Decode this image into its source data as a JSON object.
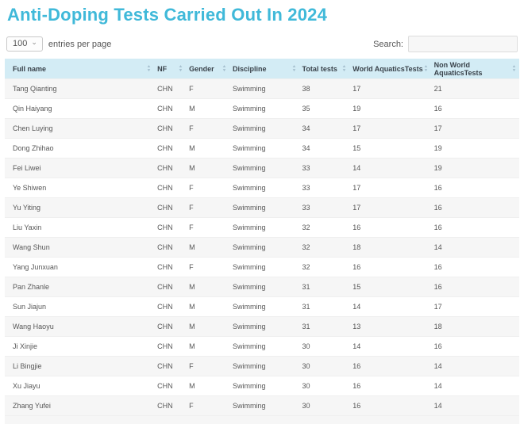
{
  "page": {
    "title": "Anti-Doping Tests Carried Out In 2024"
  },
  "controls": {
    "entries_selected": "100",
    "entries_label": "entries per page",
    "search_label": "Search:",
    "search_value": ""
  },
  "icons": {
    "select_chevron": "⌄",
    "sort_up": "▲",
    "sort_down": "▼"
  },
  "colors": {
    "title": "#40b9d9",
    "header_bg": "#d3ecf5",
    "stripe_bg": "#f6f6f6",
    "body_text": "#575757"
  },
  "table": {
    "columns": [
      {
        "label": "Full name"
      },
      {
        "label": "NF"
      },
      {
        "label": "Gender"
      },
      {
        "label": "Discipline"
      },
      {
        "label": "Total tests"
      },
      {
        "label": "World AquaticsTests"
      },
      {
        "label": "Non World AquaticsTests"
      }
    ],
    "rows": [
      {
        "full_name": "Tang Qianting",
        "nf": "CHN",
        "gender": "F",
        "discipline": "Swimming",
        "total_tests": "38",
        "world_aquatics_tests": "17",
        "non_world_aquatics_tests": "21"
      },
      {
        "full_name": "Qin Haiyang",
        "nf": "CHN",
        "gender": "M",
        "discipline": "Swimming",
        "total_tests": "35",
        "world_aquatics_tests": "19",
        "non_world_aquatics_tests": "16"
      },
      {
        "full_name": "Chen Luying",
        "nf": "CHN",
        "gender": "F",
        "discipline": "Swimming",
        "total_tests": "34",
        "world_aquatics_tests": "17",
        "non_world_aquatics_tests": "17"
      },
      {
        "full_name": "Dong Zhihao",
        "nf": "CHN",
        "gender": "M",
        "discipline": "Swimming",
        "total_tests": "34",
        "world_aquatics_tests": "15",
        "non_world_aquatics_tests": "19"
      },
      {
        "full_name": "Fei Liwei",
        "nf": "CHN",
        "gender": "M",
        "discipline": "Swimming",
        "total_tests": "33",
        "world_aquatics_tests": "14",
        "non_world_aquatics_tests": "19"
      },
      {
        "full_name": "Ye Shiwen",
        "nf": "CHN",
        "gender": "F",
        "discipline": "Swimming",
        "total_tests": "33",
        "world_aquatics_tests": "17",
        "non_world_aquatics_tests": "16"
      },
      {
        "full_name": "Yu Yiting",
        "nf": "CHN",
        "gender": "F",
        "discipline": "Swimming",
        "total_tests": "33",
        "world_aquatics_tests": "17",
        "non_world_aquatics_tests": "16"
      },
      {
        "full_name": "Liu Yaxin",
        "nf": "CHN",
        "gender": "F",
        "discipline": "Swimming",
        "total_tests": "32",
        "world_aquatics_tests": "16",
        "non_world_aquatics_tests": "16"
      },
      {
        "full_name": "Wang Shun",
        "nf": "CHN",
        "gender": "M",
        "discipline": "Swimming",
        "total_tests": "32",
        "world_aquatics_tests": "18",
        "non_world_aquatics_tests": "14"
      },
      {
        "full_name": "Yang Junxuan",
        "nf": "CHN",
        "gender": "F",
        "discipline": "Swimming",
        "total_tests": "32",
        "world_aquatics_tests": "16",
        "non_world_aquatics_tests": "16"
      },
      {
        "full_name": "Pan Zhanle",
        "nf": "CHN",
        "gender": "M",
        "discipline": "Swimming",
        "total_tests": "31",
        "world_aquatics_tests": "15",
        "non_world_aquatics_tests": "16"
      },
      {
        "full_name": "Sun Jiajun",
        "nf": "CHN",
        "gender": "M",
        "discipline": "Swimming",
        "total_tests": "31",
        "world_aquatics_tests": "14",
        "non_world_aquatics_tests": "17"
      },
      {
        "full_name": "Wang Haoyu",
        "nf": "CHN",
        "gender": "M",
        "discipline": "Swimming",
        "total_tests": "31",
        "world_aquatics_tests": "13",
        "non_world_aquatics_tests": "18"
      },
      {
        "full_name": "Ji Xinjie",
        "nf": "CHN",
        "gender": "M",
        "discipline": "Swimming",
        "total_tests": "30",
        "world_aquatics_tests": "14",
        "non_world_aquatics_tests": "16"
      },
      {
        "full_name": "Li Bingjie",
        "nf": "CHN",
        "gender": "F",
        "discipline": "Swimming",
        "total_tests": "30",
        "world_aquatics_tests": "16",
        "non_world_aquatics_tests": "14"
      },
      {
        "full_name": "Xu Jiayu",
        "nf": "CHN",
        "gender": "M",
        "discipline": "Swimming",
        "total_tests": "30",
        "world_aquatics_tests": "16",
        "non_world_aquatics_tests": "14"
      },
      {
        "full_name": "Zhang Yufei",
        "nf": "CHN",
        "gender": "F",
        "discipline": "Swimming",
        "total_tests": "30",
        "world_aquatics_tests": "16",
        "non_world_aquatics_tests": "14"
      }
    ]
  }
}
